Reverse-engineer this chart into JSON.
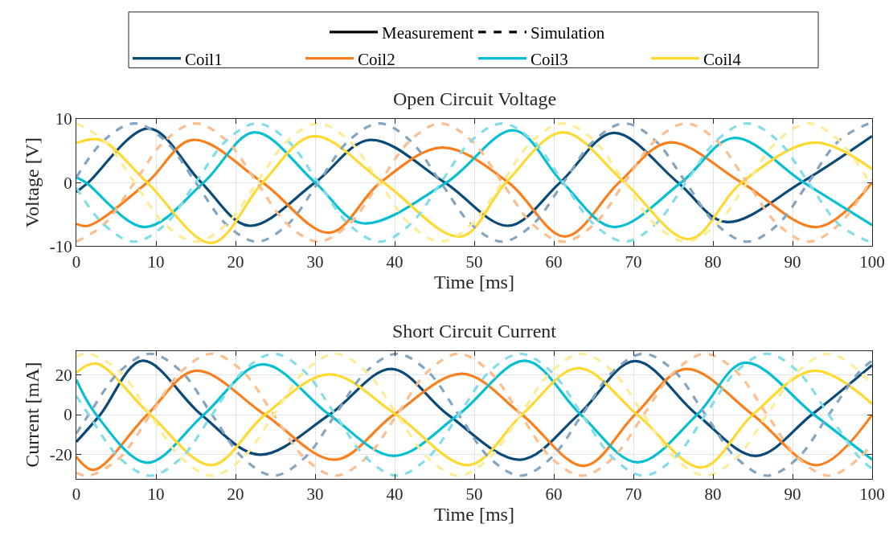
{
  "chart_data": [
    {
      "type": "line",
      "title": "Open Circuit Voltage",
      "xlabel": "Time [ms]",
      "ylabel": "Voltage [V]",
      "xlim": [
        0,
        100
      ],
      "ylim": [
        -10,
        10
      ],
      "xticks": [
        0,
        10,
        20,
        30,
        40,
        50,
        60,
        70,
        80,
        90,
        100
      ],
      "yticks": [
        -10,
        0,
        10
      ],
      "grid": true,
      "legend": "top",
      "series": [
        {
          "name": "Measurement",
          "color": "#000000",
          "line_style": "solid"
        },
        {
          "name": "Simulation",
          "color": "#000000",
          "line_style": "dashed"
        },
        {
          "name": "Coil1",
          "color": "#0a4a78",
          "line_style": "solid",
          "x": [
            0,
            1.5,
            9.1,
            15.7,
            21.7,
            30,
            36.9,
            46.3,
            54.3,
            60.8,
            67.5,
            75.6,
            81.6,
            91.1,
            100
          ],
          "values": [
            -1.5,
            0,
            8.5,
            0,
            -6.8,
            0,
            6.7,
            0,
            -6.8,
            0,
            7.8,
            0,
            -6.2,
            0,
            7.3
          ]
        },
        {
          "name": "Coil2",
          "color": "#fc7f1c",
          "line_style": "solid",
          "x": [
            0,
            1.5,
            8.9,
            14.6,
            23.4,
            31.8,
            38.2,
            46,
            54.3,
            61.4,
            68.2,
            74.5,
            83.6,
            93.1,
            100
          ],
          "values": [
            -6.5,
            -6.8,
            0,
            6.7,
            0,
            -7.9,
            0,
            5.5,
            0,
            -8.5,
            0,
            6.3,
            0,
            -7,
            0
          ]
        },
        {
          "name": "Coil3",
          "color": "#06bfd2",
          "line_style": "solid",
          "x": [
            0,
            1.2,
            8.6,
            16,
            22.4,
            30,
            35.9,
            46.5,
            55,
            61.1,
            67.5,
            76,
            82.6,
            91.4,
            100
          ],
          "values": [
            0.8,
            0,
            -7,
            0,
            7.9,
            0,
            -6.4,
            0,
            8.2,
            0,
            -7,
            0,
            7,
            0,
            -6.7
          ]
        },
        {
          "name": "Coil4",
          "color": "#ffd92f",
          "line_style": "solid",
          "x": [
            0,
            3,
            8.9,
            17,
            23.4,
            29.8,
            38.6,
            48.3,
            54,
            61.1,
            68.9,
            77,
            83.6,
            92.7,
            100
          ],
          "values": [
            6.2,
            6.7,
            0,
            -9.5,
            0,
            7.3,
            0,
            -8.5,
            0,
            7.9,
            0,
            -8.9,
            0,
            6.3,
            2.1
          ]
        },
        {
          "color": "#84a5bf",
          "line_style": "dashed",
          "x": [
            0,
            3.45,
            7.3,
            11.15,
            15,
            18.85,
            22.7,
            26.55,
            30.4,
            34.25,
            38.1,
            41.95,
            45.8,
            49.65,
            53.5,
            57.35,
            61.2,
            65.05,
            68.9,
            72.75,
            76.6,
            80.45,
            84.3,
            88.15,
            92,
            95.85,
            99.7,
            100
          ],
          "values": [
            0.8,
            6.6,
            9.3,
            6.6,
            0,
            -6.6,
            -9.3,
            -6.6,
            0,
            6.6,
            9.3,
            6.6,
            0,
            -6.6,
            -9.3,
            -6.6,
            0,
            6.6,
            9.3,
            6.6,
            0,
            -6.6,
            -9.3,
            -6.6,
            0,
            6.6,
            9.3,
            9.3
          ]
        },
        {
          "color": "#fdbd8c",
          "line_style": "dashed",
          "x": [
            0,
            3.45,
            7.3,
            11.15,
            15,
            18.85,
            22.7,
            26.55,
            30.4,
            34.25,
            38.1,
            41.95,
            45.8,
            49.65,
            53.5,
            57.35,
            61.2,
            65.05,
            68.9,
            72.75,
            76.6,
            80.45,
            84.3,
            88.15,
            92,
            95.85,
            99.7,
            100
          ],
          "values": [
            -9.3,
            -6.6,
            0,
            6.6,
            9.3,
            6.6,
            0,
            -6.6,
            -9.3,
            -6.6,
            0,
            6.6,
            9.3,
            6.6,
            0,
            -6.6,
            -9.3,
            -6.6,
            0,
            6.6,
            9.3,
            6.6,
            0,
            -6.6,
            -9.3,
            -6.6,
            0,
            0.5
          ]
        },
        {
          "color": "#82dde9",
          "line_style": "dashed",
          "x": [
            0,
            3.45,
            7.3,
            11.15,
            15,
            18.85,
            22.7,
            26.55,
            30.4,
            34.25,
            38.1,
            41.95,
            45.8,
            49.65,
            53.5,
            57.35,
            61.2,
            65.05,
            68.9,
            72.75,
            76.6,
            80.45,
            84.3,
            88.15,
            92,
            95.85,
            99.7,
            100
          ],
          "values": [
            -0.8,
            -6.6,
            -9.3,
            -6.6,
            0,
            6.6,
            9.3,
            6.6,
            0,
            -6.6,
            -9.3,
            -6.6,
            0,
            6.6,
            9.3,
            6.6,
            0,
            -6.6,
            -9.3,
            -6.6,
            0,
            6.6,
            9.3,
            6.6,
            0,
            -6.6,
            -9.3,
            -9.3
          ]
        },
        {
          "color": "#feeb96",
          "line_style": "dashed",
          "x": [
            0,
            3.45,
            7.3,
            11.15,
            15,
            18.85,
            22.7,
            26.55,
            30.4,
            34.25,
            38.1,
            41.95,
            45.8,
            49.65,
            53.5,
            57.35,
            61.2,
            65.05,
            68.9,
            72.75,
            76.6,
            80.45,
            84.3,
            88.15,
            92,
            95.85,
            99.7,
            100
          ],
          "values": [
            9.3,
            6.6,
            0,
            -6.6,
            -9.3,
            -6.6,
            0,
            6.6,
            9.3,
            6.6,
            0,
            -6.6,
            -9.3,
            -6.6,
            0,
            6.6,
            9.3,
            6.6,
            0,
            -6.6,
            -9.3,
            -6.6,
            0,
            6.6,
            9.3,
            6.6,
            0,
            -0.6
          ]
        }
      ]
    },
    {
      "type": "line",
      "title": "Short Circuit Current",
      "xlabel": "Time [ms]",
      "ylabel": "Current [mA]",
      "xlim": [
        0,
        100
      ],
      "ylim": [
        -32,
        32
      ],
      "xticks": [
        0,
        10,
        20,
        30,
        40,
        50,
        60,
        70,
        80,
        90,
        100
      ],
      "yticks": [
        -20,
        0,
        20
      ],
      "grid": true,
      "series": [
        {
          "color": "#0a4a78",
          "line_style": "solid",
          "x": [
            0,
            3,
            8.3,
            15.7,
            23,
            31.8,
            39.6,
            46.7,
            55.8,
            63.1,
            70.2,
            78,
            85.4,
            92.4,
            100
          ],
          "values": [
            -13.6,
            0,
            27,
            0,
            -20,
            0,
            22.9,
            0,
            -22.5,
            0,
            26.8,
            0,
            -20.6,
            0,
            24.8
          ]
        },
        {
          "color": "#fc7f1c",
          "line_style": "solid",
          "x": [
            0,
            2.2,
            8.9,
            15,
            23.7,
            32.5,
            39.9,
            48.5,
            56,
            63.8,
            70.2,
            76.6,
            85,
            93.1,
            100
          ],
          "values": [
            -21,
            -27.6,
            0,
            22,
            0,
            -22.5,
            0,
            20.5,
            0,
            -25.6,
            0,
            22.9,
            0,
            -25.2,
            0
          ]
        },
        {
          "color": "#06bfd2",
          "line_style": "solid",
          "x": [
            0,
            2.5,
            8.9,
            16,
            23.4,
            31.8,
            39.9,
            48,
            56.4,
            63.4,
            70.5,
            78,
            84,
            92.7,
            100
          ],
          "values": [
            17.5,
            0,
            -24,
            0,
            25.2,
            0,
            -20.6,
            0,
            27,
            0,
            -23.8,
            0,
            26,
            0,
            -22.5
          ]
        },
        {
          "color": "#ffd92f",
          "line_style": "solid",
          "x": [
            0,
            2.5,
            9.3,
            17,
            23.7,
            31.8,
            40.2,
            49.3,
            56,
            63.1,
            70.5,
            78.6,
            85,
            92.7,
            100
          ],
          "values": [
            21,
            25.6,
            0,
            -25.2,
            0,
            20.2,
            0,
            -25.2,
            0,
            23.3,
            0,
            -26.4,
            0,
            22,
            5.4
          ]
        },
        {
          "color": "#84a5bf",
          "line_style": "dashed",
          "x": [
            0,
            1.55,
            5.425,
            9.3,
            13.175,
            17.05,
            20.925,
            24.8,
            28.675,
            32.55,
            36.425,
            40.3,
            44.175,
            48.05,
            51.925,
            55.8,
            59.675,
            63.55,
            67.425,
            71.3,
            75.175,
            79.05,
            82.925,
            86.8,
            90.675,
            94.55,
            98.425,
            100
          ],
          "values": [
            -9.4,
            0,
            21.6,
            30.5,
            21.6,
            0,
            -21.6,
            -30.5,
            -21.6,
            0,
            21.6,
            30.5,
            21.6,
            0,
            -21.6,
            -30.5,
            -21.6,
            0,
            21.6,
            30.5,
            21.6,
            0,
            -21.6,
            -30.5,
            -21.6,
            0,
            21.6,
            27
          ]
        },
        {
          "color": "#fdbd8c",
          "line_style": "dashed",
          "x": [
            0,
            1.55,
            5.425,
            9.3,
            13.175,
            17.05,
            20.925,
            24.8,
            28.675,
            32.55,
            36.425,
            40.3,
            44.175,
            48.05,
            51.925,
            55.8,
            59.675,
            63.55,
            67.425,
            71.3,
            75.175,
            79.05,
            82.925,
            86.8,
            90.675,
            94.55,
            98.425,
            100
          ],
          "values": [
            -29,
            -30.5,
            -21.6,
            0,
            21.6,
            30.5,
            21.6,
            0,
            -21.6,
            -30.5,
            -21.6,
            0,
            21.6,
            30.5,
            21.6,
            0,
            -21.6,
            -30.5,
            -21.6,
            0,
            21.6,
            30.5,
            21.6,
            0,
            -21.6,
            -30.5,
            -21.6,
            -13.8
          ]
        },
        {
          "color": "#82dde9",
          "line_style": "dashed",
          "x": [
            0,
            1.55,
            5.425,
            9.3,
            13.175,
            17.05,
            20.925,
            24.8,
            28.675,
            32.55,
            36.425,
            40.3,
            44.175,
            48.05,
            51.925,
            55.8,
            59.675,
            63.55,
            67.425,
            71.3,
            75.175,
            79.05,
            82.925,
            86.8,
            90.675,
            94.55,
            98.425,
            100
          ],
          "values": [
            9.4,
            0,
            -21.6,
            -30.5,
            -21.6,
            0,
            21.6,
            30.5,
            21.6,
            0,
            -21.6,
            -30.5,
            -21.6,
            0,
            21.6,
            30.5,
            21.6,
            0,
            -21.6,
            -30.5,
            -21.6,
            0,
            21.6,
            30.5,
            21.6,
            0,
            -21.6,
            -27
          ]
        },
        {
          "color": "#feeb96",
          "line_style": "dashed",
          "x": [
            0,
            1.55,
            5.425,
            9.3,
            13.175,
            17.05,
            20.925,
            24.8,
            28.675,
            32.55,
            36.425,
            40.3,
            44.175,
            48.05,
            51.925,
            55.8,
            59.675,
            63.55,
            67.425,
            71.3,
            75.175,
            79.05,
            82.925,
            86.8,
            90.675,
            94.55,
            98.425,
            100
          ],
          "values": [
            29,
            30.5,
            21.6,
            0,
            -21.6,
            -30.5,
            -21.6,
            0,
            21.6,
            30.5,
            21.6,
            0,
            -21.6,
            -30.5,
            -21.6,
            0,
            21.6,
            30.5,
            21.6,
            0,
            -21.6,
            -30.5,
            -21.6,
            0,
            21.6,
            30.5,
            21.6,
            13.8
          ]
        }
      ]
    }
  ]
}
